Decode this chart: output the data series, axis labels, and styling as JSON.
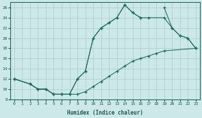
{
  "xlabel": "Humidex (Indice chaleur)",
  "bg_color": "#cce8e8",
  "grid_color": "#aacccc",
  "line_color": "#1a6b5a",
  "ylim": [
    8,
    27
  ],
  "xlim": [
    -0.5,
    23.5
  ],
  "yticks": [
    8,
    10,
    12,
    14,
    16,
    18,
    20,
    22,
    24,
    26
  ],
  "xticks": [
    0,
    1,
    2,
    3,
    4,
    5,
    6,
    7,
    8,
    9,
    10,
    11,
    12,
    13,
    14,
    15,
    16,
    17,
    18,
    19,
    20,
    21,
    22,
    23
  ],
  "line1_x": [
    0,
    2,
    3,
    4,
    5,
    6,
    7,
    8,
    9,
    10,
    11,
    12,
    13,
    14,
    15,
    16
  ],
  "line1_y": [
    12,
    11,
    10,
    10,
    9,
    9,
    9,
    12,
    13.5,
    20,
    22,
    23,
    24,
    26.5,
    25,
    24
  ],
  "line1b_x": [
    19,
    20,
    21,
    22,
    23
  ],
  "line1b_y": [
    26,
    22,
    20.5,
    20,
    18
  ],
  "line2_x": [
    0,
    2,
    3,
    4,
    5,
    6,
    7,
    8,
    9,
    10,
    11,
    12,
    13,
    14,
    15,
    16,
    17,
    19,
    20,
    21,
    22,
    23
  ],
  "line2_y": [
    12,
    11,
    10,
    10,
    9,
    9,
    9,
    12,
    13.5,
    20,
    22,
    23,
    24,
    26.5,
    25,
    24,
    24,
    24,
    22,
    20.5,
    20,
    18
  ],
  "line3_x": [
    0,
    2,
    3,
    4,
    5,
    6,
    7,
    8,
    9,
    10,
    11,
    12,
    13,
    14,
    15,
    16,
    17,
    18,
    19,
    23
  ],
  "line3_y": [
    12,
    11,
    10,
    10,
    9,
    9,
    9,
    9,
    9.5,
    10.5,
    11.5,
    12.5,
    13.5,
    14.5,
    15.5,
    16,
    16.5,
    17,
    17.5,
    18
  ]
}
